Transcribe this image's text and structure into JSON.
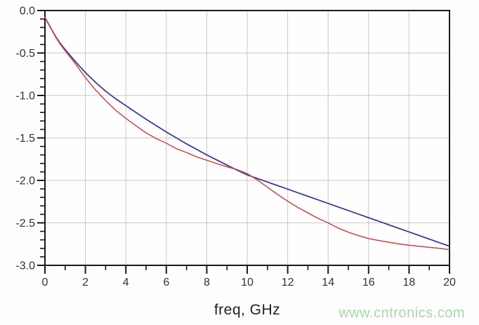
{
  "figure": {
    "xlabel": "freq, GHz",
    "watermark": "www.cntronics.com"
  },
  "chart_data": {
    "type": "line",
    "title": "",
    "xlabel": "freq, GHz",
    "ylabel": "",
    "xlim": [
      0,
      20
    ],
    "ylim": [
      -3.0,
      0.0
    ],
    "grid": true,
    "legend_position": "none",
    "x_major_ticks": [
      0,
      2,
      4,
      6,
      8,
      10,
      12,
      14,
      16,
      18,
      20
    ],
    "x_tick_labels": [
      "0",
      "2",
      "4",
      "6",
      "8",
      "10",
      "12",
      "14",
      "16",
      "18",
      "20"
    ],
    "x_minor_tick_step": 1,
    "y_major_ticks": [
      0,
      -0.5,
      -1.0,
      -1.5,
      -2.0,
      -2.5,
      -3.0
    ],
    "y_tick_labels": [
      "0.0",
      "-0.5",
      "-1.0",
      "-1.5",
      "-2.0",
      "-2.5",
      "-3.0"
    ],
    "y_minor_tick_step": 0.1,
    "x": [
      0,
      0.25,
      0.5,
      0.75,
      1,
      1.5,
      2,
      2.5,
      3,
      3.5,
      4,
      4.5,
      5,
      5.5,
      6,
      6.5,
      7,
      7.5,
      8,
      8.5,
      9,
      9.5,
      10,
      10.5,
      11,
      11.5,
      12,
      12.5,
      13,
      13.5,
      14,
      14.5,
      15,
      15.5,
      16,
      16.5,
      17,
      17.5,
      18,
      18.5,
      19,
      19.5,
      20
    ],
    "series": [
      {
        "name": "smooth-blue-trace",
        "color": "#3a3aa0",
        "stroke_width": 1.8,
        "values": [
          -0.08,
          -0.19,
          -0.295,
          -0.385,
          -0.46,
          -0.6,
          -0.73,
          -0.845,
          -0.95,
          -1.04,
          -1.12,
          -1.2,
          -1.28,
          -1.355,
          -1.43,
          -1.5,
          -1.57,
          -1.635,
          -1.7,
          -1.76,
          -1.82,
          -1.88,
          -1.935,
          -1.977,
          -2.019,
          -2.061,
          -2.103,
          -2.145,
          -2.187,
          -2.229,
          -2.271,
          -2.313,
          -2.355,
          -2.397,
          -2.439,
          -2.481,
          -2.523,
          -2.565,
          -2.607,
          -2.649,
          -2.691,
          -2.733,
          -2.775
        ]
      },
      {
        "name": "measured-red-trace",
        "color": "#c84545",
        "stroke_width": 1.5,
        "values": [
          -0.08,
          -0.19,
          -0.3,
          -0.395,
          -0.475,
          -0.625,
          -0.79,
          -0.935,
          -1.06,
          -1.175,
          -1.27,
          -1.357,
          -1.44,
          -1.508,
          -1.562,
          -1.627,
          -1.672,
          -1.723,
          -1.763,
          -1.802,
          -1.84,
          -1.873,
          -1.92,
          -1.995,
          -2.08,
          -2.165,
          -2.245,
          -2.318,
          -2.383,
          -2.447,
          -2.5,
          -2.562,
          -2.61,
          -2.65,
          -2.685,
          -2.708,
          -2.728,
          -2.748,
          -2.763,
          -2.776,
          -2.788,
          -2.8,
          -2.815
        ]
      }
    ],
    "colors": {
      "grid": "#c8c8c8",
      "axis": "#1a1a1a",
      "tick_label": "#333333",
      "xlabel": "#222222",
      "watermark": "#a8d8a8",
      "plot_background": "#fefefe"
    }
  }
}
